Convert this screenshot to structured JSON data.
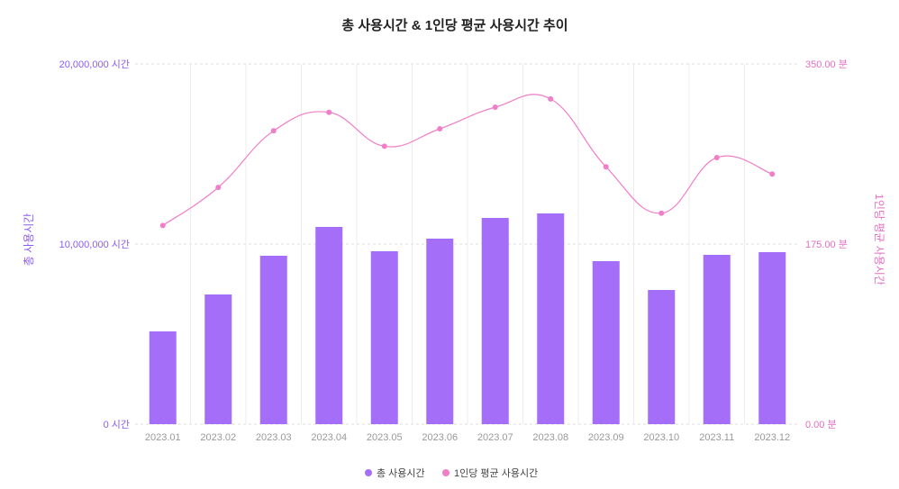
{
  "chart_data": {
    "type": "bar",
    "title": "총 사용시간 & 1인당 평균 사용시간 추이",
    "categories": [
      "2023.01",
      "2023.02",
      "2023.03",
      "2023.04",
      "2023.05",
      "2023.06",
      "2023.07",
      "2023.08",
      "2023.09",
      "2023.10",
      "2023.11",
      "2023.12"
    ],
    "series": [
      {
        "name": "총 사용시간",
        "type": "bar",
        "axis": "left",
        "color": "#a56ef8",
        "values": [
          5150000,
          7200000,
          9350000,
          10950000,
          9600000,
          10300000,
          11450000,
          11700000,
          9050000,
          7450000,
          9400000,
          9550000
        ]
      },
      {
        "name": "1인당 평균 사용시간",
        "type": "line",
        "axis": "right",
        "color": "#f07ec8",
        "values": [
          193,
          230,
          285,
          303,
          270,
          287,
          308,
          316,
          250,
          205,
          259,
          243
        ]
      }
    ],
    "y_left": {
      "label": "총 사용시간",
      "range": [
        0,
        20000000
      ],
      "ticks": [
        {
          "value": 0,
          "label": "0 시간"
        },
        {
          "value": 10000000,
          "label": "10,000,000 시간"
        },
        {
          "value": 20000000,
          "label": "20,000,000 시간"
        }
      ]
    },
    "y_right": {
      "label": "1인당 평균 사용시간",
      "range": [
        0,
        350
      ],
      "ticks": [
        {
          "value": 0,
          "label": "0.00 분"
        },
        {
          "value": 175,
          "label": "175.00 분"
        },
        {
          "value": 350,
          "label": "350.00 분"
        }
      ]
    },
    "grid": true,
    "legend_position": "bottom-center"
  }
}
